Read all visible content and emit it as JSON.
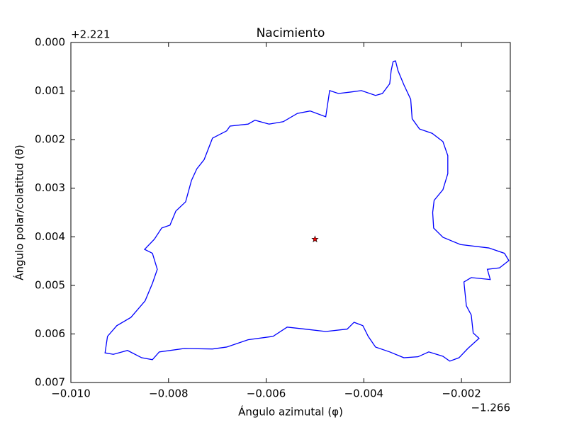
{
  "chart_data": {
    "type": "line",
    "title": "Nacimiento",
    "xlabel": "Ángulo azimutal (φ)",
    "ylabel": "Ángulo polar/colatitud (θ)",
    "offset_x": "−1.266",
    "offset_y": "+2.221",
    "xlim": [
      -0.01,
      -0.001
    ],
    "ylim": [
      0.007,
      0.0
    ],
    "xticks": [
      {
        "value": -0.01,
        "label": "−0.010"
      },
      {
        "value": -0.008,
        "label": "−0.008"
      },
      {
        "value": -0.006,
        "label": "−0.006"
      },
      {
        "value": -0.004,
        "label": "−0.004"
      },
      {
        "value": -0.002,
        "label": "−0.002"
      }
    ],
    "yticks": [
      {
        "value": 0.0,
        "label": "0.000"
      },
      0.001,
      0.002,
      0.003,
      0.004,
      0.005,
      0.006,
      0.007
    ],
    "grid": false,
    "series": [
      {
        "color": "#0000ff",
        "x": [
          -0.0034,
          -0.00335,
          -0.0033,
          -0.00318,
          -0.00304,
          -0.00301,
          -0.00286,
          -0.0026,
          -0.00238,
          -0.00228,
          -0.00228,
          -0.00238,
          -0.00256,
          -0.00259,
          -0.00257,
          -0.00238,
          -0.00202,
          -0.00144,
          -0.00112,
          -0.00103,
          -0.00122,
          -0.00147,
          -0.00141,
          -0.0018,
          -0.00195,
          -0.0019,
          -0.0018,
          -0.00176,
          -0.00164,
          -0.00187,
          -0.00205,
          -0.00224,
          -0.00238,
          -0.00267,
          -0.00289,
          -0.00318,
          -0.00347,
          -0.00376,
          -0.00391,
          -0.00402,
          -0.0042,
          -0.00434,
          -0.00478,
          -0.00521,
          -0.00557,
          -0.00586,
          -0.00637,
          -0.00681,
          -0.0071,
          -0.00768,
          -0.00819,
          -0.00833,
          -0.00855,
          -0.00884,
          -0.00913,
          -0.0093,
          -0.00925,
          -0.00906,
          -0.00877,
          -0.00848,
          -0.00833,
          -0.00823,
          -0.00833,
          -0.00849,
          -0.00829,
          -0.00814,
          -0.00797,
          -0.00785,
          -0.00765,
          -0.00753,
          -0.00742,
          -0.00727,
          -0.0071,
          -0.00681,
          -0.00674,
          -0.00637,
          -0.00623,
          -0.00594,
          -0.00565,
          -0.00536,
          -0.0051,
          -0.00478,
          -0.0047,
          -0.00452,
          -0.00427,
          -0.00405,
          -0.00376,
          -0.00362,
          -0.00347,
          -0.00344,
          -0.0034
        ],
        "y": [
          0.00039,
          0.00038,
          0.00058,
          0.00087,
          0.00117,
          0.00157,
          0.00178,
          0.00187,
          0.00204,
          0.00233,
          0.0027,
          0.00303,
          0.00325,
          0.0035,
          0.00382,
          0.00401,
          0.00416,
          0.00423,
          0.00434,
          0.00449,
          0.00464,
          0.00467,
          0.00488,
          0.00484,
          0.00493,
          0.00542,
          0.00561,
          0.00598,
          0.00609,
          0.0063,
          0.00649,
          0.00656,
          0.00646,
          0.00637,
          0.00647,
          0.00649,
          0.00637,
          0.00627,
          0.00605,
          0.00583,
          0.00576,
          0.0059,
          0.00595,
          0.0059,
          0.00586,
          0.00605,
          0.00612,
          0.00627,
          0.00631,
          0.0063,
          0.00637,
          0.00653,
          0.00649,
          0.00634,
          0.00642,
          0.00639,
          0.00605,
          0.00583,
          0.00566,
          0.00532,
          0.00496,
          0.00467,
          0.00434,
          0.00426,
          0.00405,
          0.00382,
          0.00376,
          0.00347,
          0.00328,
          0.00284,
          0.0026,
          0.00241,
          0.00197,
          0.00182,
          0.00172,
          0.00168,
          0.0016,
          0.00168,
          0.00163,
          0.00146,
          0.00141,
          0.00153,
          0.00099,
          0.00105,
          0.00102,
          0.00099,
          0.00109,
          0.00105,
          0.00085,
          0.00058,
          0.00039
        ]
      }
    ],
    "marker": {
      "x": -0.005,
      "y": 0.00405,
      "color": "#ff0000"
    }
  }
}
